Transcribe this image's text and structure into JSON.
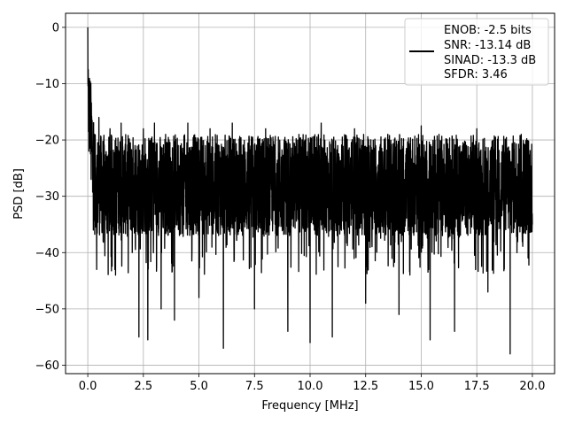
{
  "chart_data": {
    "type": "line",
    "title": "",
    "xlabel": "Frequency [MHz]",
    "ylabel": "PSD [dB]",
    "xlim": [
      -1.0,
      21.0
    ],
    "ylim": [
      -61.5,
      2.5
    ],
    "xticks": [
      0.0,
      2.5,
      5.0,
      7.5,
      10.0,
      12.5,
      15.0,
      17.5,
      20.0
    ],
    "xtick_labels": [
      "0.0",
      "2.5",
      "5.0",
      "7.5",
      "10.0",
      "12.5",
      "15.0",
      "17.5",
      "20.0"
    ],
    "yticks": [
      0,
      -10,
      -20,
      -30,
      -40,
      -50,
      -60
    ],
    "ytick_labels": [
      "0",
      "−10",
      "−20",
      "−30",
      "−40",
      "−50",
      "−60"
    ],
    "grid": true,
    "legend_position": "top-right",
    "legend_lines": [
      "ENOB: -2.5 bits",
      "SNR: -13.14 dB",
      "SINAD: -13.3 dB",
      "SFDR: 3.46"
    ],
    "line_color": "#000000",
    "series": [
      {
        "values_note_x": "MHz",
        "x": [
          0.0,
          0.02,
          0.05,
          0.1,
          0.15,
          0.2,
          0.25,
          0.3,
          0.4,
          0.5,
          0.75,
          1.0,
          1.25,
          1.5,
          2.0,
          2.3,
          2.5,
          2.7,
          3.0,
          3.3,
          3.5,
          3.9,
          4.5,
          5.0,
          5.5,
          6.1,
          6.5,
          7.5,
          8.0,
          9.0,
          9.5,
          10.0,
          10.5,
          11.0,
          12.0,
          12.5,
          13.5,
          14.0,
          15.0,
          15.4,
          15.8,
          16.5,
          17.5,
          18.0,
          19.0,
          19.5,
          20.0
        ],
        "y": [
          0.0,
          -7.5,
          -22.0,
          -14.5,
          -27.0,
          -17.0,
          -36.0,
          -19.0,
          -43.0,
          -16.0,
          -33.0,
          -18.0,
          -44.0,
          -17.0,
          -40.0,
          -55.0,
          -18.0,
          -55.5,
          -17.0,
          -50.0,
          -19.0,
          -52.0,
          -17.0,
          -48.0,
          -18.0,
          -57.0,
          -17.0,
          -50.0,
          -18.0,
          -54.0,
          -19.0,
          -56.0,
          -17.0,
          -55.0,
          -18.0,
          -49.0,
          -19.0,
          -51.0,
          -17.5,
          -55.5,
          -19.0,
          -54.0,
          -18.0,
          -47.0,
          -58.0,
          -19.0,
          -35.0
        ]
      }
    ]
  }
}
